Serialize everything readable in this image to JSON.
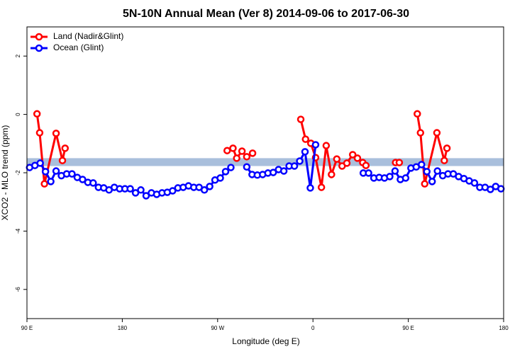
{
  "chart_data": {
    "type": "line",
    "title": "5N-10N Annual Mean (Ver 8)   2014-09-06 to 2017-06-30",
    "x_label": "Longitude (deg E)",
    "y_label": "XCO2 - MLO trend (ppm)",
    "xlim": [
      90,
      540
    ],
    "xticks": [
      {
        "value": 90,
        "label": "90 E"
      },
      {
        "value": 180,
        "label": "180"
      },
      {
        "value": 270,
        "label": "90 W"
      },
      {
        "value": 360,
        "label": "0"
      },
      {
        "value": 450,
        "label": "90 E"
      },
      {
        "value": 540,
        "label": "180"
      }
    ],
    "ylim": [
      -7,
      3
    ],
    "yticks": [
      2,
      0,
      -2,
      -4,
      -6
    ],
    "reference_band": [
      -1.5,
      -1.77
    ],
    "band_color": "#a9bfdc",
    "legend": "top-left",
    "series": [
      {
        "name": "Land (Nadir&Glint)",
        "color": "#ff0000",
        "x": [
          99.5,
          102,
          106.5,
          117.5,
          123.5,
          126,
          null,
          279,
          284.5,
          288,
          293,
          297.5,
          303,
          null,
          348.5,
          353,
          358,
          362.5,
          368,
          372.5,
          377.5,
          382.5,
          387.5,
          392,
          397.5,
          402,
          407,
          410,
          null,
          438,
          441.5,
          null,
          458.5,
          461.5,
          465.5,
          477,
          484,
          486.5
        ],
        "values": [
          0.02,
          -0.63,
          -2.38,
          -0.65,
          -1.58,
          -1.16,
          null,
          -1.24,
          -1.16,
          -1.5,
          -1.26,
          -1.45,
          -1.33,
          null,
          -0.17,
          -0.85,
          -0.99,
          -1.48,
          -2.5,
          -1.07,
          -2.06,
          -1.53,
          -1.77,
          -1.67,
          -1.38,
          -1.5,
          -1.65,
          -1.75,
          null,
          -1.65,
          -1.65,
          null,
          0.02,
          -0.63,
          -2.38,
          -0.63,
          -1.58,
          -1.16
        ]
      },
      {
        "name": "Ocean (Glint)",
        "color": "#0000ff",
        "x": [
          92.5,
          97.5,
          102.5,
          107.5,
          112.5,
          117.5,
          122.5,
          127.5,
          132.5,
          137.5,
          142.5,
          147.5,
          152.5,
          157.5,
          162.5,
          167.5,
          172.5,
          177.5,
          182.5,
          187.5,
          192.5,
          197.5,
          202.5,
          207.5,
          212.5,
          217.5,
          222.5,
          227.5,
          232.5,
          237.5,
          242.5,
          247.5,
          252.5,
          257.5,
          262.5,
          267.5,
          272.5,
          277.5,
          282.5,
          null,
          297.5,
          302.5,
          307.5,
          312.5,
          317.5,
          322.5,
          327.5,
          332.5,
          337.5,
          342.5,
          347.5,
          352.5,
          357.5,
          362.5,
          null,
          407.5,
          412.5,
          417.5,
          422.5,
          427.5,
          432.5,
          437.5,
          442.5,
          447.5,
          452.5,
          457.5,
          462.5,
          467.5,
          472.5,
          477.5,
          482.5,
          487.5,
          492.5,
          497.5,
          502.5,
          507.5,
          512.5,
          517.5,
          522.5,
          527.5,
          532.5,
          537.5
        ],
        "values": [
          -1.82,
          -1.75,
          -1.67,
          -1.96,
          -2.3,
          -1.94,
          -2.1,
          -2.04,
          -2.04,
          -2.16,
          -2.23,
          -2.33,
          -2.35,
          -2.5,
          -2.52,
          -2.59,
          -2.5,
          -2.55,
          -2.55,
          -2.55,
          -2.69,
          -2.59,
          -2.79,
          -2.69,
          -2.74,
          -2.69,
          -2.67,
          -2.62,
          -2.52,
          -2.5,
          -2.45,
          -2.5,
          -2.5,
          -2.59,
          -2.47,
          -2.25,
          -2.18,
          -1.96,
          -1.82,
          null,
          -1.8,
          -2.06,
          -2.08,
          -2.06,
          -2.01,
          -1.99,
          -1.89,
          -1.94,
          -1.77,
          -1.77,
          -1.6,
          -1.28,
          -2.52,
          -1.04,
          null,
          -2.01,
          -2.01,
          -2.18,
          -2.16,
          -2.18,
          -2.13,
          -1.94,
          -2.23,
          -2.18,
          -1.84,
          -1.8,
          -1.72,
          -1.96,
          -2.3,
          -1.94,
          -2.1,
          -2.04,
          -2.04,
          -2.13,
          -2.2,
          -2.28,
          -2.35,
          -2.5,
          -2.5,
          -2.57,
          -2.47,
          -2.55
        ]
      }
    ]
  }
}
